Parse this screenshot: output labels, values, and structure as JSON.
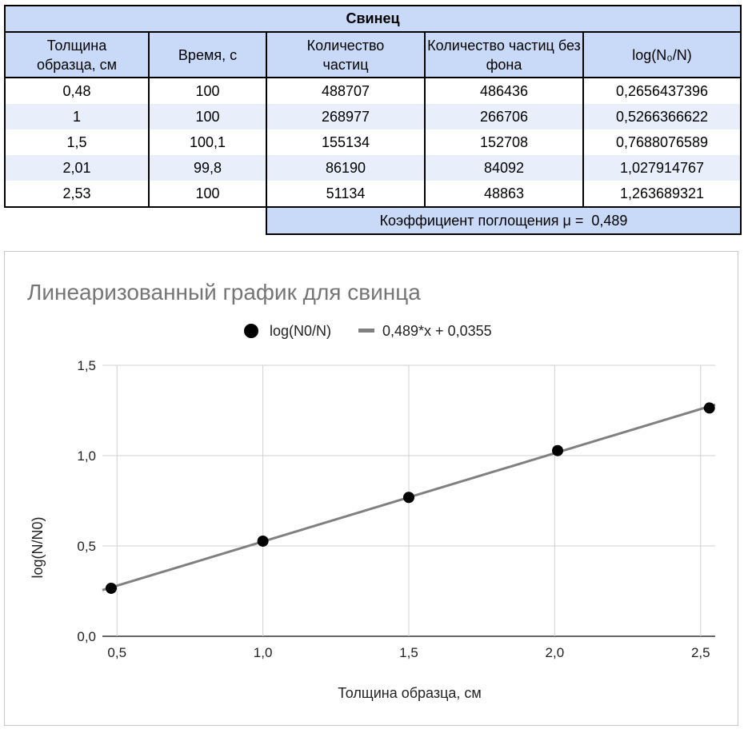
{
  "table": {
    "title": "Свинец",
    "headers": [
      "Толщина образца, см",
      "Время, с",
      "Количество частиц",
      "Количество частиц без фона",
      "log(N₀/N)"
    ],
    "rows": [
      [
        "0,48",
        "100",
        "488707",
        "486436",
        "0,2656437396"
      ],
      [
        "1",
        "100",
        "268977",
        "266706",
        "0,5266366622"
      ],
      [
        "1,5",
        "100,1",
        "155134",
        "152708",
        "0,7688076589"
      ],
      [
        "2,01",
        "99,8",
        "86190",
        "84092",
        "1,027914767"
      ],
      [
        "2,53",
        "100",
        "51134",
        "48863",
        "1,263689321"
      ]
    ],
    "coefficient_label": "Коэффициент поглощения μ =",
    "coefficient_value": "0,489"
  },
  "chart_data": {
    "type": "scatter",
    "title": "Линеаризованный график для свинца",
    "xlabel": "Толщина образца, см",
    "ylabel": "log(N/N0)",
    "xlim": [
      0.45,
      2.55
    ],
    "ylim": [
      0,
      1.5
    ],
    "x_ticks": [
      0.5,
      1.0,
      1.5,
      2.0,
      2.5
    ],
    "x_tick_labels": [
      "0,5",
      "1,0",
      "1,5",
      "2,0",
      "2,5"
    ],
    "y_ticks": [
      0,
      0.5,
      1.0,
      1.5
    ],
    "y_tick_labels": [
      "0,0",
      "0,5",
      "1,0",
      "1,5"
    ],
    "grid": true,
    "legend_position": "top",
    "series": [
      {
        "name": "log(N0/N)",
        "x": [
          0.48,
          1.0,
          1.5,
          2.01,
          2.53
        ],
        "y": [
          0.2656437396,
          0.5266366622,
          0.7688076589,
          1.027914767,
          1.263689321
        ],
        "color": "#000000"
      }
    ],
    "trendline": {
      "name": "0,489*x + 0,0355",
      "slope": 0.489,
      "intercept": 0.0355,
      "x_range": [
        0.45,
        2.55
      ],
      "color": "#808080"
    }
  }
}
